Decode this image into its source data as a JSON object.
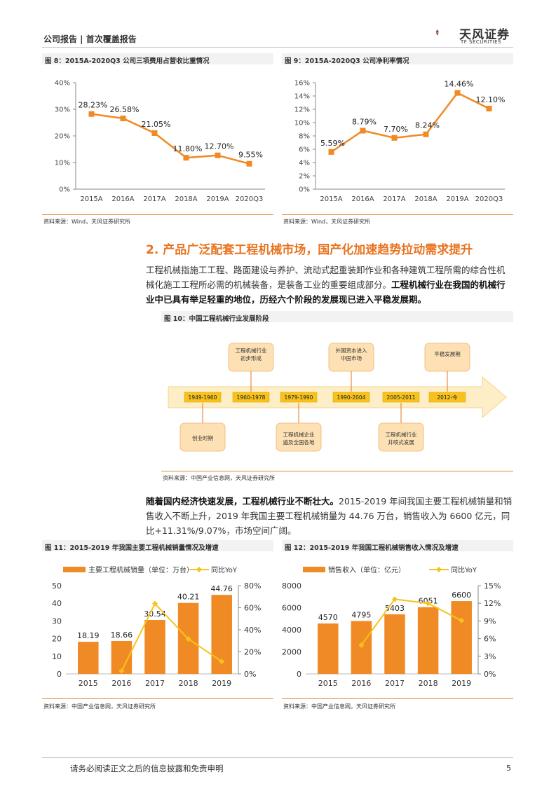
{
  "header": {
    "left": "公司报告 | 首次覆盖报告",
    "logo_cn": "天风证券",
    "logo_en": "TF SECURITIES"
  },
  "fig8": {
    "title": "图 8：2015A-2020Q3 公司三项费用占营收比重情况",
    "source": "资料来源：Wind，天风证券研究所",
    "chart_data": {
      "type": "line",
      "categories": [
        "2015A",
        "2016A",
        "2017A",
        "2018A",
        "2019A",
        "2020Q3"
      ],
      "values": [
        28.23,
        26.58,
        21.05,
        11.8,
        12.7,
        9.55
      ],
      "labels": [
        "28.23%",
        "26.58%",
        "21.05%",
        "11.80%",
        "12.70%",
        "9.55%"
      ],
      "yticks": [
        "0%",
        "10%",
        "20%",
        "30%",
        "40%"
      ],
      "ylim": [
        0,
        40
      ],
      "color": "#f08a24"
    }
  },
  "fig9": {
    "title": "图 9：2015A-2020Q3 公司净利率情况",
    "source": "资料来源：Wind，天风证券研究所",
    "chart_data": {
      "type": "line",
      "categories": [
        "2015A",
        "2016A",
        "2017A",
        "2018A",
        "2019A",
        "2020Q3"
      ],
      "values": [
        5.59,
        8.79,
        7.7,
        8.24,
        14.46,
        12.1
      ],
      "labels": [
        "5.59%",
        "8.79%",
        "7.70%",
        "8.24%",
        "14.46%",
        "12.10%"
      ],
      "yticks": [
        "0%",
        "2%",
        "4%",
        "6%",
        "8%",
        "10%",
        "12%",
        "14%",
        "16%"
      ],
      "ylim": [
        0,
        16
      ],
      "color": "#f08a24"
    }
  },
  "section": {
    "title": "2. 产品广泛配套工程机械市场，国产化加速趋势拉动需求提升",
    "para1_normal": "工程机械指施工工程、路面建设与养护、流动式起重装卸作业和各种建筑工程所需的综合性机械化施工工程所必需的机械装备，是装备工业的重要组成部分。",
    "para1_bold": "工程机械行业在我国的机械行业中已具有举足轻重的地位，历经六个阶段的发展现已进入平稳发展期。",
    "para2_bold": "随着国内经济快速发展，工程机械行业不断壮大。",
    "para2_normal": "2015-2019 年间我国主要工程机械销量和销售收入不断上升，2019 年我国主要工程机械销量为 44.76 万台，销售收入为 6600 亿元，同比+11.31%/9.07%，市场空间广阔。"
  },
  "fig10": {
    "title": "图 10：中国工程机械行业发展阶段",
    "source": "资料来源：中国产业信息网，天风证券研究所",
    "periods": [
      "1949-1960",
      "1960-1978",
      "1979-1990",
      "1990-2004",
      "2005-2011",
      "2012-今"
    ],
    "top_notes": [
      "工程机械行业初步形成",
      "外国资本进入中国市场",
      "平稳发展期"
    ],
    "bottom_notes": [
      "创业时期",
      "工程机械企业遍及全国各地",
      "工程机械行业井喷式发展"
    ]
  },
  "fig11": {
    "title": "图 11：2015-2019 年我国主要工程机械销量情况及增速",
    "source": "资料来源：中国产业信息网，天风证券研究所",
    "chart_data": {
      "type": "bar",
      "categories": [
        "2015",
        "2016",
        "2017",
        "2018",
        "2019"
      ],
      "series": [
        {
          "name": "主要工程机械销量（单位：万台）",
          "values": [
            18.19,
            18.66,
            30.54,
            40.21,
            44.76
          ],
          "labels": [
            "18.19",
            "18.66",
            "30.54",
            "40.21",
            "44.76"
          ]
        },
        {
          "name": "同比YoY",
          "values": [
            null,
            2.6,
            63.7,
            31.7,
            11.3
          ]
        }
      ],
      "yticks_left": [
        "0",
        "10",
        "20",
        "30",
        "40",
        "50"
      ],
      "yticks_right": [
        "0%",
        "20%",
        "40%",
        "60%",
        "80%"
      ],
      "ylim_left": [
        0,
        50
      ],
      "ylim_right": [
        0,
        80
      ],
      "bar_color": "#f08a24",
      "line_color": "#f7c21c"
    }
  },
  "fig12": {
    "title": "图 12：2015-2019 年我国工程机械销售收入情况及增速",
    "source": "资料来源：中国产业信息网，天风证券研究所",
    "chart_data": {
      "type": "bar",
      "categories": [
        "2015",
        "2016",
        "2017",
        "2018",
        "2019"
      ],
      "series": [
        {
          "name": "销售收入（单位：亿元）",
          "values": [
            4570,
            4795,
            5403,
            6051,
            6600
          ],
          "labels": [
            "4570",
            "4795",
            "5403",
            "6051",
            "6600"
          ]
        },
        {
          "name": "同比YoY",
          "values": [
            null,
            4.9,
            12.7,
            12.0,
            9.07
          ]
        }
      ],
      "yticks_left": [
        "0",
        "2000",
        "4000",
        "6000",
        "8000"
      ],
      "yticks_right": [
        "0%",
        "3%",
        "6%",
        "9%",
        "12%",
        "15%"
      ],
      "ylim_left": [
        0,
        8000
      ],
      "ylim_right": [
        0,
        15
      ],
      "bar_color": "#f08a24",
      "line_color": "#f7c21c"
    }
  },
  "footer": {
    "disclaimer": "请务必阅读正文之后的信息披露和免责申明",
    "page": "5"
  }
}
